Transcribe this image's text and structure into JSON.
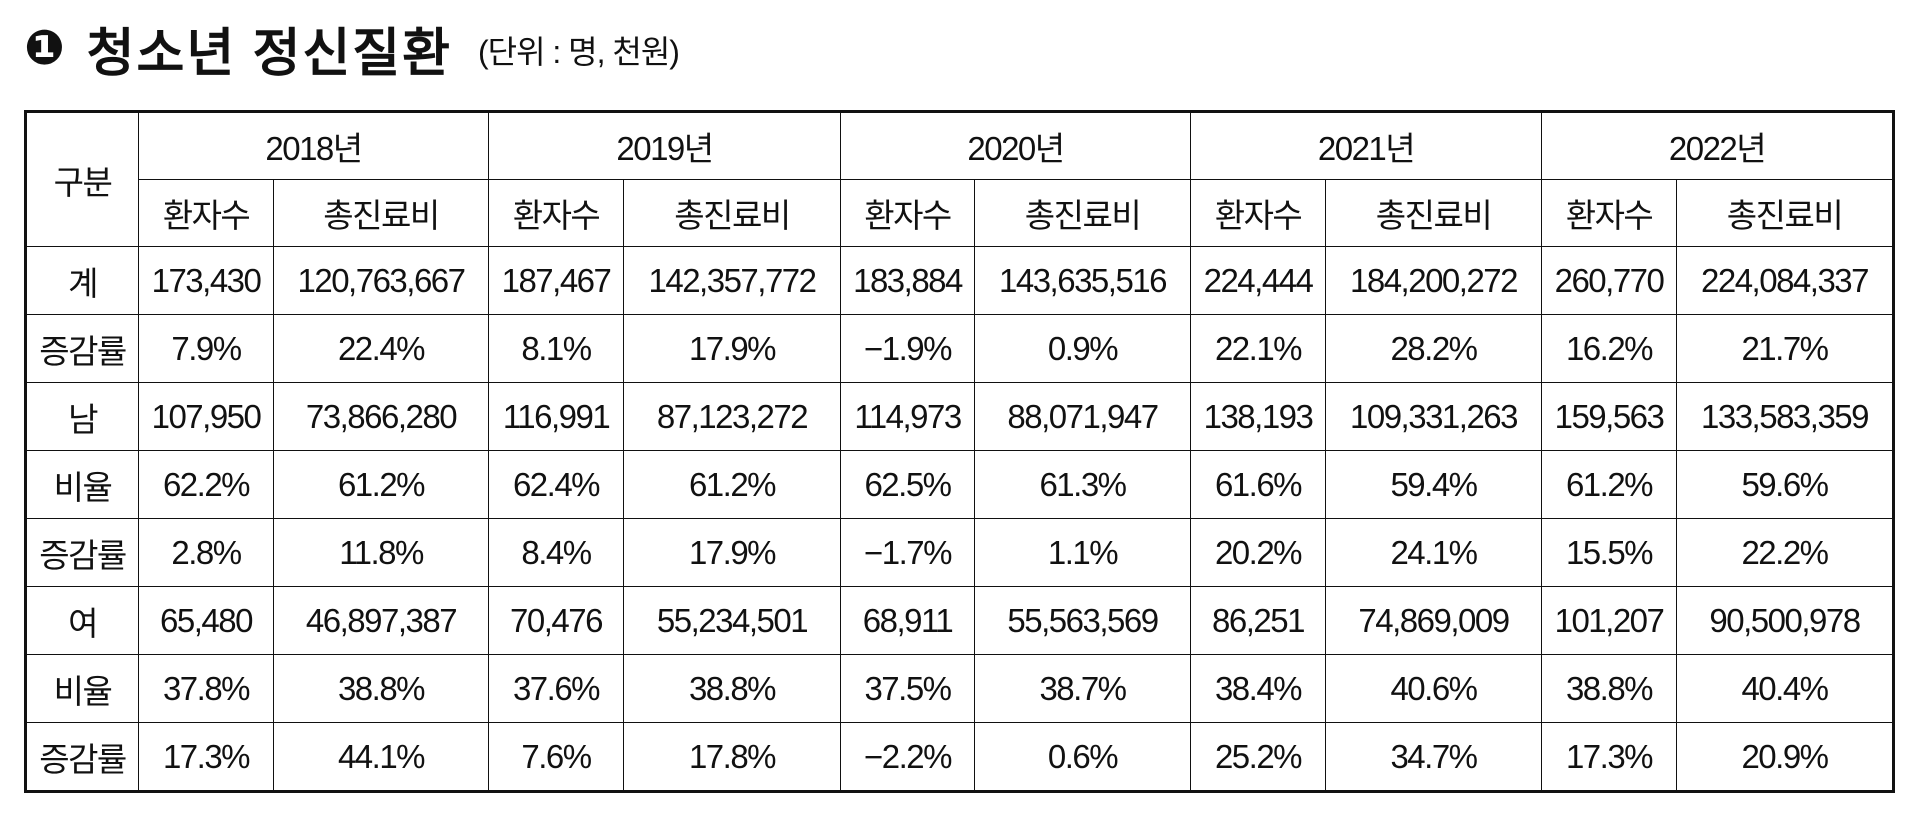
{
  "header": {
    "marker": "❶",
    "title": "청소년 정신질환",
    "unit": "(단위 : 명, 천원)"
  },
  "table": {
    "corner": "구분",
    "years": [
      "2018년",
      "2019년",
      "2020년",
      "2021년",
      "2022년"
    ],
    "subheaders": [
      "환자수",
      "총진료비",
      "환자수",
      "총진료비",
      "환자수",
      "총진료비",
      "환자수",
      "총진료비",
      "환자수",
      "총진료비"
    ],
    "rows": [
      {
        "label": "계",
        "cells": [
          "173,430",
          "120,763,667",
          "187,467",
          "142,357,772",
          "183,884",
          "143,635,516",
          "224,444",
          "184,200,272",
          "260,770",
          "224,084,337"
        ]
      },
      {
        "label": "증감률",
        "cells": [
          "7.9%",
          "22.4%",
          "8.1%",
          "17.9%",
          "−1.9%",
          "0.9%",
          "22.1%",
          "28.2%",
          "16.2%",
          "21.7%"
        ]
      },
      {
        "label": "남",
        "cells": [
          "107,950",
          "73,866,280",
          "116,991",
          "87,123,272",
          "114,973",
          "88,071,947",
          "138,193",
          "109,331,263",
          "159,563",
          "133,583,359"
        ]
      },
      {
        "label": "비율",
        "cells": [
          "62.2%",
          "61.2%",
          "62.4%",
          "61.2%",
          "62.5%",
          "61.3%",
          "61.6%",
          "59.4%",
          "61.2%",
          "59.6%"
        ]
      },
      {
        "label": "증감률",
        "cells": [
          "2.8%",
          "11.8%",
          "8.4%",
          "17.9%",
          "−1.7%",
          "1.1%",
          "20.2%",
          "24.1%",
          "15.5%",
          "22.2%"
        ]
      },
      {
        "label": "여",
        "cells": [
          "65,480",
          "46,897,387",
          "70,476",
          "55,234,501",
          "68,911",
          "55,563,569",
          "86,251",
          "74,869,009",
          "101,207",
          "90,500,978"
        ]
      },
      {
        "label": "비율",
        "cells": [
          "37.8%",
          "38.8%",
          "37.6%",
          "38.8%",
          "37.5%",
          "38.7%",
          "38.4%",
          "40.6%",
          "38.8%",
          "40.4%"
        ]
      },
      {
        "label": "증감률",
        "cells": [
          "17.3%",
          "44.1%",
          "7.6%",
          "17.8%",
          "−2.2%",
          "0.6%",
          "25.2%",
          "34.7%",
          "17.3%",
          "20.9%"
        ]
      }
    ]
  }
}
